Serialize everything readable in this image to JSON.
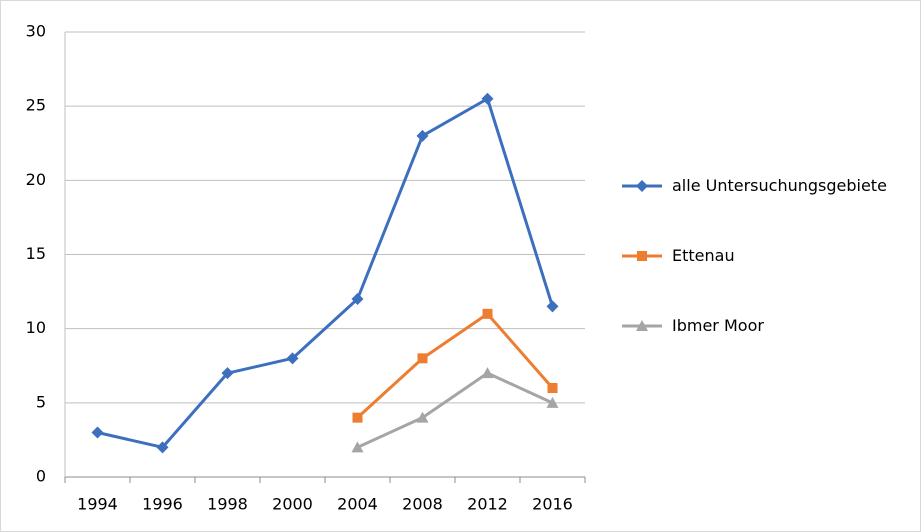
{
  "chart_data": {
    "type": "line",
    "categories": [
      "1994",
      "1996",
      "1998",
      "2000",
      "2004",
      "2008",
      "2012",
      "2016"
    ],
    "series": [
      {
        "name": "alle Untersuchungsgebiete",
        "color": "#3c70bf",
        "marker": "diamond",
        "values": [
          3,
          2,
          7,
          8,
          12,
          23,
          25.5,
          11.5
        ]
      },
      {
        "name": "Ettenau",
        "color": "#ed7d31",
        "marker": "square",
        "values": [
          null,
          null,
          null,
          null,
          4,
          8,
          11,
          6
        ]
      },
      {
        "name": "Ibmer Moor",
        "color": "#a5a5a5",
        "marker": "triangle",
        "values": [
          null,
          null,
          null,
          null,
          2,
          4,
          7,
          5
        ]
      }
    ],
    "ylim": [
      0,
      30
    ],
    "yticks": [
      0,
      5,
      10,
      15,
      20,
      25,
      30
    ],
    "grid": true,
    "legend": "right"
  }
}
